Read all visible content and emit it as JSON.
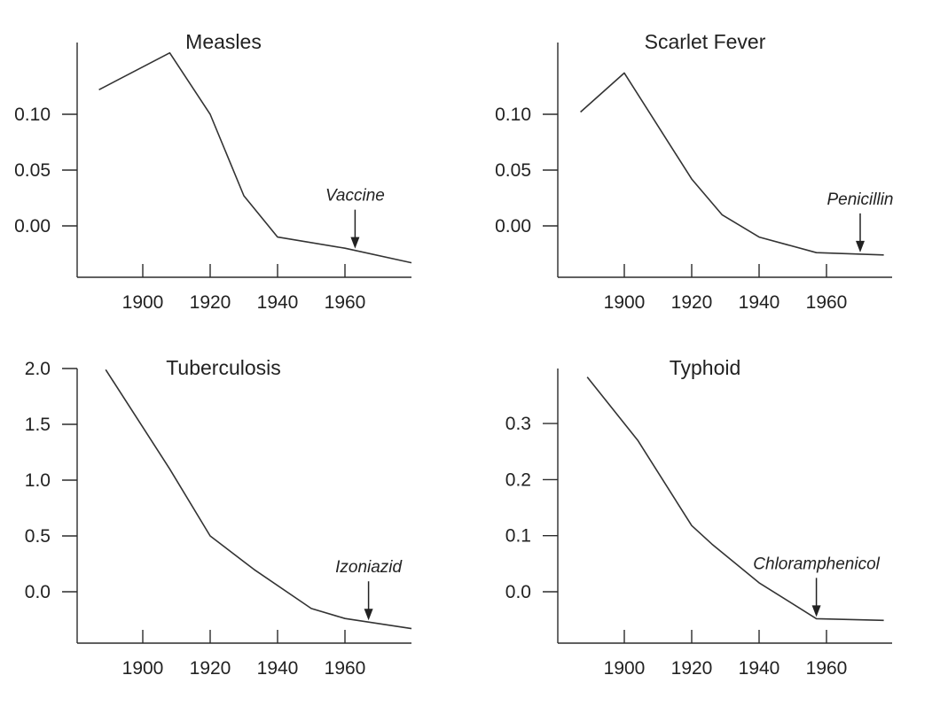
{
  "chart_data": [
    {
      "type": "line",
      "title": "Measles",
      "x": [
        1887,
        1908,
        1920,
        1930,
        1940,
        1960,
        1980
      ],
      "y": [
        0.122,
        0.155,
        0.1,
        0.027,
        -0.01,
        -0.02,
        -0.033
      ],
      "xticks": [
        1900,
        1920,
        1940,
        1960
      ],
      "yticks": [
        "0.10",
        "0.05",
        "0.00"
      ],
      "ytick_values": [
        0.1,
        0.05,
        0.0
      ],
      "xlim": [
        1880,
        1980
      ],
      "ylim": [
        -0.045,
        0.17
      ],
      "annotation": {
        "label": "Vaccine",
        "x": 1963
      },
      "grid": false
    },
    {
      "type": "line",
      "title": "Scarlet Fever",
      "x": [
        1887,
        1900,
        1920,
        1929,
        1940,
        1957,
        1977
      ],
      "y": [
        0.102,
        0.137,
        0.042,
        0.01,
        -0.01,
        -0.024,
        -0.026
      ],
      "xticks": [
        1900,
        1920,
        1940,
        1960
      ],
      "yticks": [
        "0.10",
        "0.05",
        "0.00"
      ],
      "ytick_values": [
        0.1,
        0.05,
        0.0
      ],
      "xlim": [
        1880,
        1980
      ],
      "ylim": [
        -0.045,
        0.17
      ],
      "annotation": {
        "label": "Penicillin",
        "x": 1970
      },
      "grid": false
    },
    {
      "type": "line",
      "title": "Tuberculosis",
      "x": [
        1889,
        1908,
        1920,
        1933,
        1950,
        1960,
        1980
      ],
      "y": [
        1.99,
        1.1,
        0.5,
        0.2,
        -0.15,
        -0.24,
        -0.33
      ],
      "xticks": [
        1900,
        1920,
        1940,
        1960
      ],
      "yticks": [
        "2.0",
        "1.5",
        "1.0",
        "0.5",
        "0.0"
      ],
      "ytick_values": [
        2.0,
        1.5,
        1.0,
        0.5,
        0.0
      ],
      "xlim": [
        1880,
        1980
      ],
      "ylim": [
        -0.45,
        2.0
      ],
      "annotation": {
        "label": "Izoniazid",
        "x": 1967
      },
      "grid": false
    },
    {
      "type": "line",
      "title": "Typhoid",
      "x": [
        1889,
        1904,
        1920,
        1926,
        1940,
        1957,
        1977
      ],
      "y": [
        0.383,
        0.27,
        0.118,
        0.085,
        0.016,
        -0.048,
        -0.051
      ],
      "xticks": [
        1900,
        1920,
        1940,
        1960
      ],
      "yticks": [
        "0.3",
        "0.2",
        "0.1",
        "0.0"
      ],
      "ytick_values": [
        0.3,
        0.2,
        0.1,
        0.0
      ],
      "xlim": [
        1880,
        1980
      ],
      "ylim": [
        -0.09,
        0.4
      ],
      "annotation": {
        "label": "Chloramphenicol",
        "x": 1957
      },
      "grid": false
    }
  ]
}
